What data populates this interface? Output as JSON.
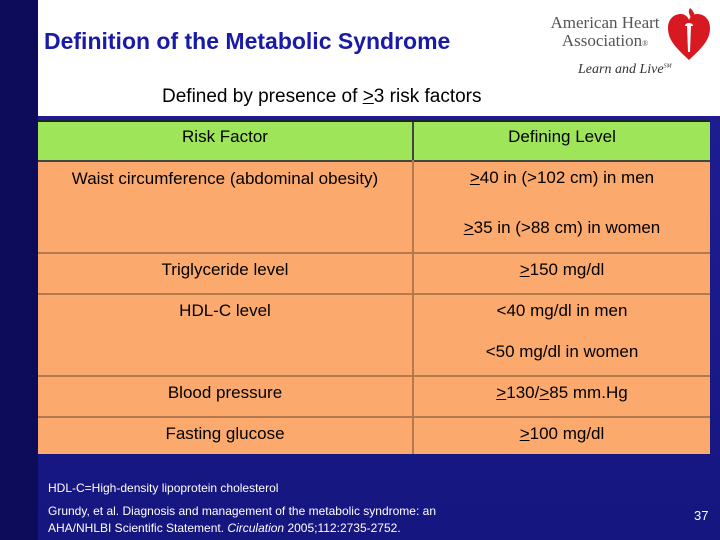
{
  "title": "Definition of the Metabolic Syndrome",
  "logo": {
    "line1": "American Heart",
    "line2": "Association",
    "tagline": "Learn and Live",
    "reg": "®",
    "tm": "SM"
  },
  "subtitle": {
    "prefix": "Defined by presence of ",
    "gte": ">",
    "suffix": "3 risk factors"
  },
  "table": {
    "headers": [
      "Risk Factor",
      "Defining Level"
    ],
    "rows": [
      {
        "factor": "Waist circumference (abdominal obesity)",
        "levels": [
          ">40 in (>102 cm) in men",
          ">35 in (>88 cm) in women"
        ]
      },
      {
        "factor": "Triglyceride level",
        "levels": [
          ">150 mg/dl"
        ]
      },
      {
        "factor": "HDL-C level",
        "levels": [
          "<40 mg/dl in men",
          "<50 mg/dl in women"
        ]
      },
      {
        "factor": "Blood pressure",
        "levels": [
          ">130/>85 mm.Hg"
        ]
      },
      {
        "factor": "Fasting glucose",
        "levels": [
          ">100 mg/dl"
        ]
      }
    ]
  },
  "footnotes": {
    "abbrev": "HDL-C=High-density lipoprotein cholesterol",
    "ref_line1": "Grundy, et al. Diagnosis and management of the metabolic syndrome: an",
    "ref_line2_a": "AHA/NHLBI Scientific Statement. ",
    "ref_journal": "Circulation",
    "ref_line2_b": " 2005;112:2735-2752."
  },
  "page_number": "37",
  "colors": {
    "background": "#1c1c8e",
    "title": "#1a1aa8",
    "header_row": "#9fe55a",
    "table_body": "#fba96d"
  }
}
